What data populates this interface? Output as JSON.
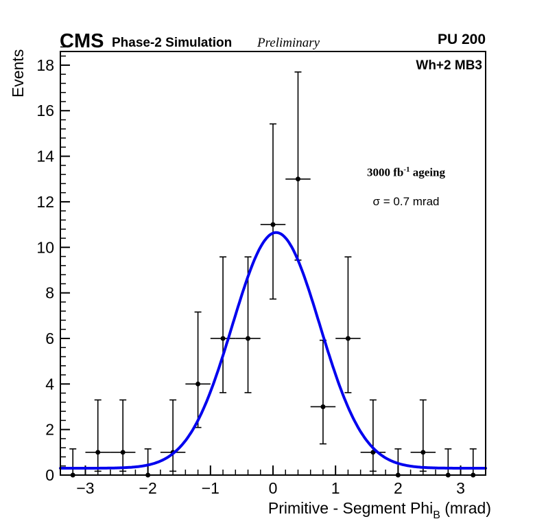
{
  "header": {
    "experiment": "CMS",
    "simulation": "Phase-2 Simulation",
    "preliminary": "Preliminary",
    "pileup": "PU 200"
  },
  "plot": {
    "region": "Wh+2 MB3",
    "ageing_base": "3000 fb",
    "ageing_sup": "-1",
    "ageing_rest": " ageing",
    "sigma": "σ = 0.7 mrad"
  },
  "chart_data": {
    "type": "scatter",
    "title": "",
    "xlabel": "Primitive - Segment Phi_B (mrad)",
    "xlabel_main": "Primitive - Segment Phi",
    "xlabel_sub": "B",
    "xlabel_unit": " (mrad)",
    "ylabel": "Events",
    "xlim": [
      -3.4,
      3.4
    ],
    "ylim": [
      0,
      18.6
    ],
    "grid": false,
    "legend": null,
    "xticks": {
      "values": [
        -3,
        -2,
        -1,
        0,
        1,
        2,
        3
      ],
      "labels": [
        "−3",
        "−2",
        "−1",
        "0",
        "1",
        "2",
        "3"
      ],
      "minor_step": 0.2
    },
    "yticks": {
      "values": [
        0,
        2,
        4,
        6,
        8,
        10,
        12,
        14,
        16,
        18
      ],
      "labels": [
        "0",
        "2",
        "4",
        "6",
        "8",
        "10",
        "12",
        "14",
        "16",
        "18"
      ],
      "minor_step": 0.4
    },
    "points": [
      {
        "x": -3.2,
        "y": 0,
        "eyl": 0,
        "eyh": 1.15,
        "ex": 0.2
      },
      {
        "x": -2.8,
        "y": 1,
        "eyl": 0.83,
        "eyh": 2.3,
        "ex": 0.2
      },
      {
        "x": -2.4,
        "y": 1,
        "eyl": 0.83,
        "eyh": 2.3,
        "ex": 0.2
      },
      {
        "x": -2.0,
        "y": 0,
        "eyl": 0,
        "eyh": 1.15,
        "ex": 0.2
      },
      {
        "x": -1.6,
        "y": 1,
        "eyl": 0.83,
        "eyh": 2.3,
        "ex": 0.2
      },
      {
        "x": -1.2,
        "y": 4,
        "eyl": 1.91,
        "eyh": 3.16,
        "ex": 0.2
      },
      {
        "x": -0.8,
        "y": 6,
        "eyl": 2.38,
        "eyh": 3.58,
        "ex": 0.2
      },
      {
        "x": -0.4,
        "y": 6,
        "eyl": 2.38,
        "eyh": 3.58,
        "ex": 0.2
      },
      {
        "x": 0.0,
        "y": 11,
        "eyl": 3.27,
        "eyh": 4.42,
        "ex": 0.2
      },
      {
        "x": 0.4,
        "y": 13,
        "eyl": 3.56,
        "eyh": 4.7,
        "ex": 0.2
      },
      {
        "x": 0.8,
        "y": 3,
        "eyl": 1.63,
        "eyh": 2.92,
        "ex": 0.2
      },
      {
        "x": 1.2,
        "y": 6,
        "eyl": 2.38,
        "eyh": 3.58,
        "ex": 0.2
      },
      {
        "x": 1.6,
        "y": 1,
        "eyl": 0.83,
        "eyh": 2.3,
        "ex": 0.2
      },
      {
        "x": 2.0,
        "y": 0,
        "eyl": 0,
        "eyh": 1.15,
        "ex": 0.2
      },
      {
        "x": 2.4,
        "y": 1,
        "eyl": 0.83,
        "eyh": 2.3,
        "ex": 0.2
      },
      {
        "x": 2.8,
        "y": 0,
        "eyl": 0,
        "eyh": 1.15,
        "ex": 0.2
      },
      {
        "x": 3.2,
        "y": 0,
        "eyl": 0,
        "eyh": 1.15,
        "ex": 0.2
      }
    ],
    "fit": {
      "shape": "gaussian",
      "mean": 0.05,
      "sigma": 0.7,
      "peak": 10.65,
      "baseline": 0.3,
      "color": "#0000ee",
      "width": 4
    },
    "marker": {
      "color": "#000000",
      "size": 3.5
    }
  }
}
